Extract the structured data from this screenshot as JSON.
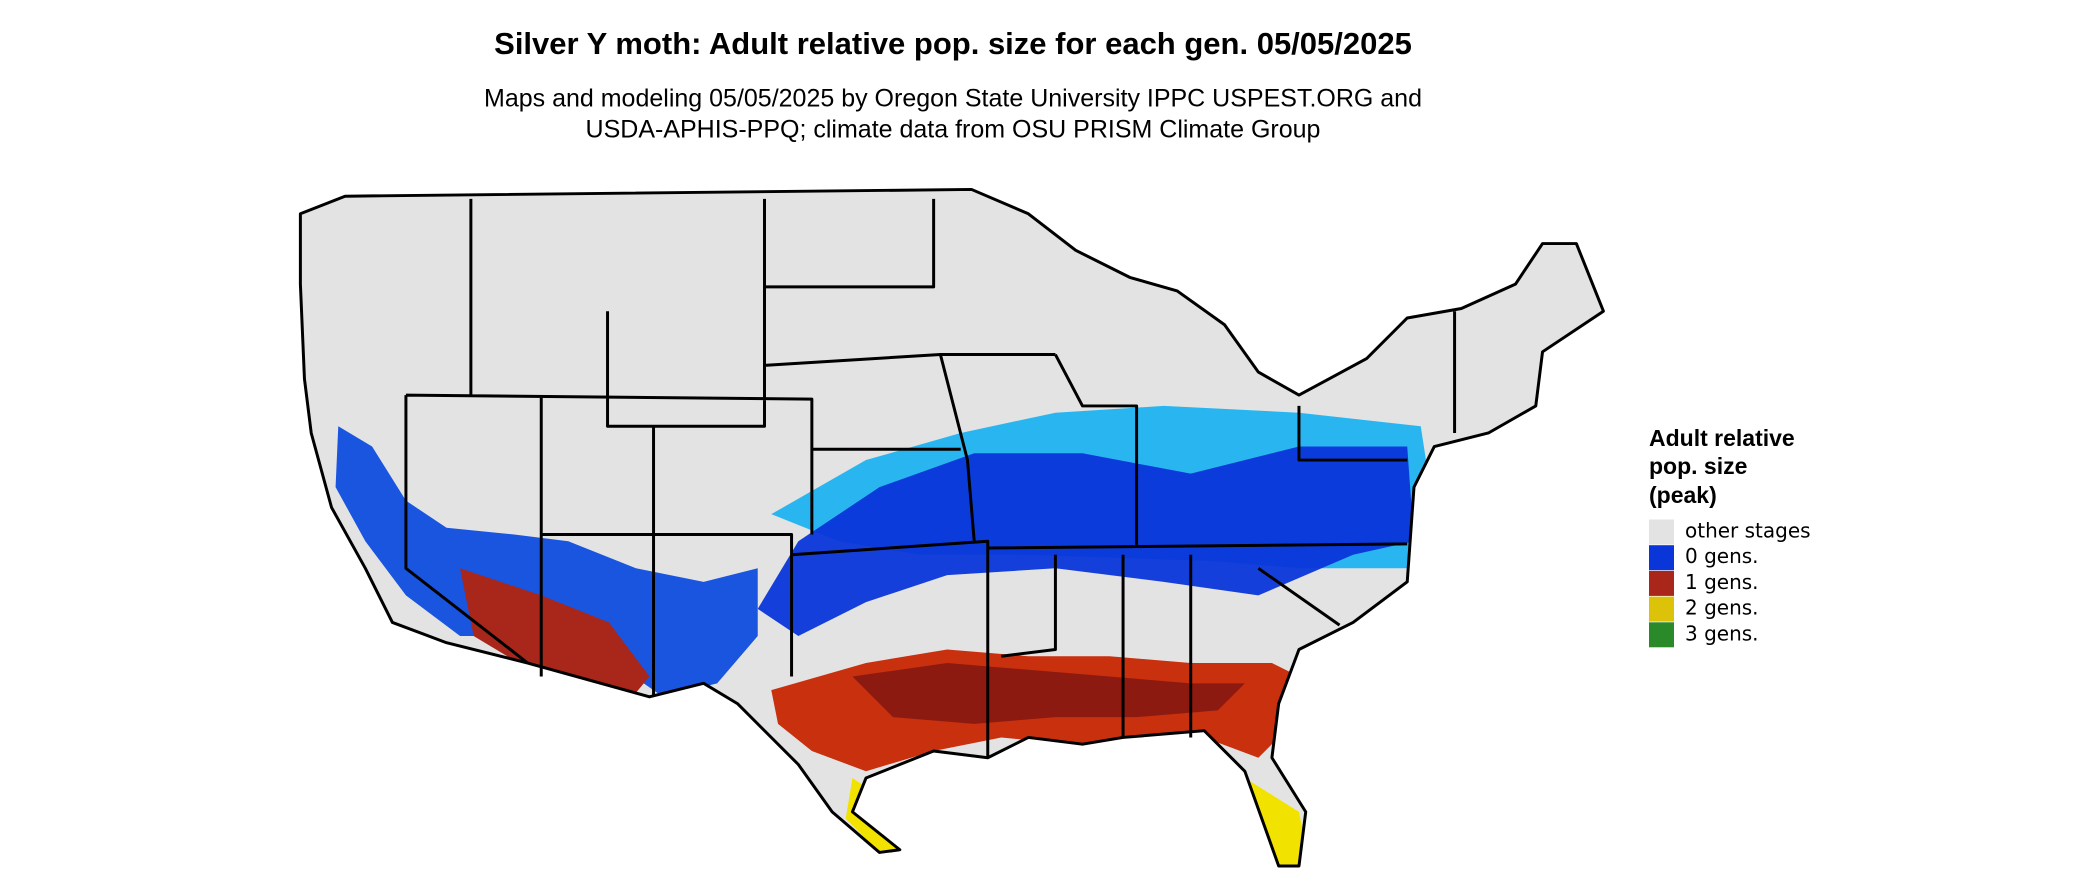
{
  "title": "Silver Y moth: Adult relative pop. size for each gen. 05/05/2025",
  "subtitle": [
    "Maps and modeling 05/05/2025 by Oregon State University IPPC USPEST.ORG and",
    "USDA-APHIS-PPQ; climate data from OSU PRISM Climate Group"
  ],
  "legend": {
    "title": [
      "Adult relative",
      "pop. size",
      "(peak)"
    ],
    "items": [
      {
        "label": "other stages",
        "color": "#e3e3e3"
      },
      {
        "label": "0 gens.",
        "color": "#0a36d9"
      },
      {
        "label": "1 gens.",
        "color": "#a8261a"
      },
      {
        "label": "2 gens.",
        "color": "#dcc30a"
      },
      {
        "label": "3 gens.",
        "color": "#2a8a2a"
      }
    ]
  }
}
